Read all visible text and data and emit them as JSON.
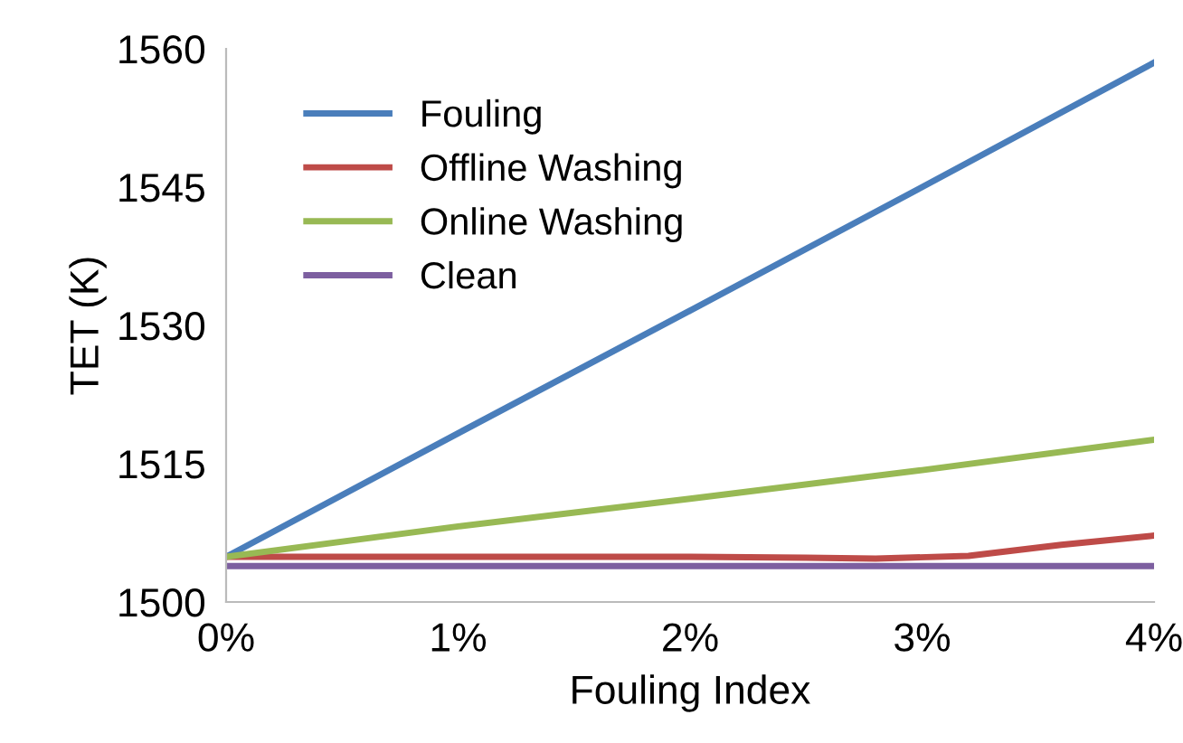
{
  "chart_data": {
    "type": "line",
    "xlabel": "Fouling Index",
    "ylabel": "TET (K)",
    "xlim": [
      0,
      4
    ],
    "xticks": [
      {
        "value": 0,
        "label": "0%"
      },
      {
        "value": 1,
        "label": "1%"
      },
      {
        "value": 2,
        "label": "2%"
      },
      {
        "value": 3,
        "label": "3%"
      },
      {
        "value": 4,
        "label": "4%"
      }
    ],
    "ylim": [
      1500,
      1560
    ],
    "yticks": [
      1500,
      1515,
      1530,
      1545,
      1560
    ],
    "legend": "top left",
    "grid": false,
    "marker": "none",
    "line_style": "solid",
    "series": [
      {
        "name": "Fouling",
        "color": "#4a7ebb",
        "x": [
          0,
          1,
          2,
          3,
          4
        ],
        "values": [
          1504.9,
          1518.3,
          1531.6,
          1545.0,
          1558.5
        ]
      },
      {
        "name": "Offline Washing",
        "color": "#be4b48",
        "x": [
          0,
          1,
          2,
          2.5,
          2.8,
          3.2,
          3.6,
          4
        ],
        "values": [
          1504.9,
          1504.9,
          1504.9,
          1504.8,
          1504.7,
          1505.0,
          1506.2,
          1507.2
        ]
      },
      {
        "name": "Online Washing",
        "color": "#98b954",
        "x": [
          0,
          1,
          2,
          3,
          4
        ],
        "values": [
          1504.9,
          1508.2,
          1511.2,
          1514.3,
          1517.6
        ]
      },
      {
        "name": "Clean",
        "color": "#7d5fa0",
        "x": [
          0,
          4
        ],
        "values": [
          1503.9,
          1503.9
        ]
      }
    ]
  }
}
